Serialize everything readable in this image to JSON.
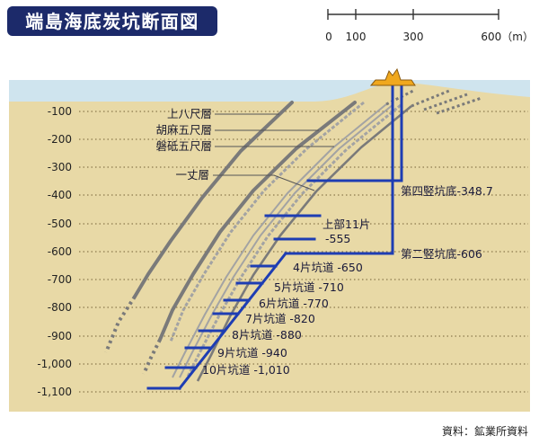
{
  "title": "端島海底炭坑断面図",
  "scale_bar": {
    "ticks": [
      "0",
      "100",
      "300",
      "600（m）"
    ]
  },
  "depth_axis": [
    "-100",
    "-200",
    "-300",
    "-400",
    "-500",
    "-600",
    "-700",
    "-800",
    "-900",
    "-1,000",
    "-1,100"
  ],
  "seams": [
    "上八尺層",
    "胡麻五尺層",
    "磐砥五尺層",
    "一丈層"
  ],
  "shafts": {
    "fourth_bottom": "第四竪坑底-348.7",
    "second_bottom": "第二竪坑底-606"
  },
  "upper_level": {
    "name": "上部11片",
    "depth": "-555"
  },
  "galleries": [
    "4片坑道 -650",
    "5片坑道 -710",
    "6片坑道 -770",
    "7片坑道 -820",
    "8片坑道 -880",
    "9片坑道 -940",
    "10片坑道 -1,010"
  ],
  "source": "資料：鉱業所資料",
  "colors": {
    "title_bg": "#1c2a6a",
    "title_text": "#ffffff",
    "sea": "#cfe4ee",
    "ground": "#e8d9a6",
    "level_line": "#8c7a4c",
    "seam": "#7a7a7a",
    "seam_light": "#a3a3a3",
    "shaft": "#1e3db3",
    "headframe": "#f0a81e"
  }
}
